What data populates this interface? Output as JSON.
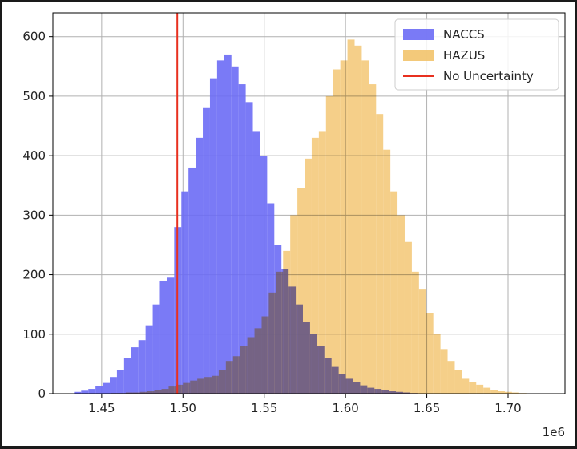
{
  "chart_data": {
    "type": "histogram",
    "title": "",
    "xlabel": "",
    "ylabel": "",
    "x_scale_label": "1e6",
    "xlim": [
      1.42,
      1.735
    ],
    "ylim": [
      0,
      640
    ],
    "xticks": [
      1.45,
      1.5,
      1.55,
      1.6,
      1.65,
      1.7
    ],
    "xtick_labels": [
      "1.45",
      "1.50",
      "1.55",
      "1.60",
      "1.65",
      "1.70"
    ],
    "yticks": [
      0,
      100,
      200,
      300,
      400,
      500,
      600
    ],
    "ytick_labels": [
      "0",
      "100",
      "200",
      "300",
      "400",
      "500",
      "600"
    ],
    "grid": true,
    "legend_position": "top-right",
    "vline": {
      "name": "No Uncertainty",
      "x": 1.4965,
      "color": "#e8301f"
    },
    "series": [
      {
        "name": "NACCS",
        "color": "#6b6bf5",
        "bin_edges": [
          1.433,
          1.4374,
          1.4418,
          1.4462,
          1.4506,
          1.455,
          1.4594,
          1.4638,
          1.4682,
          1.4726,
          1.477,
          1.4814,
          1.4858,
          1.4902,
          1.4946,
          1.499,
          1.5034,
          1.5078,
          1.5122,
          1.5166,
          1.521,
          1.5254,
          1.5298,
          1.5342,
          1.5386,
          1.543,
          1.5474,
          1.5518,
          1.5562,
          1.5606,
          1.565,
          1.5694,
          1.5738,
          1.5782,
          1.5826,
          1.587,
          1.5914,
          1.5958,
          1.6002,
          1.6046,
          1.609,
          1.6134,
          1.6178,
          1.6222,
          1.6266,
          1.631,
          1.6354,
          1.6398,
          1.6442
        ],
        "counts": [
          3,
          5,
          8,
          13,
          18,
          28,
          40,
          60,
          78,
          90,
          115,
          150,
          190,
          195,
          280,
          340,
          380,
          430,
          480,
          530,
          560,
          570,
          550,
          520,
          490,
          440,
          400,
          320,
          250,
          210,
          180,
          150,
          120,
          100,
          80,
          60,
          45,
          33,
          25,
          20,
          14,
          10,
          8,
          6,
          4,
          3,
          2,
          1
        ]
      },
      {
        "name": "HAZUS",
        "color": "#f2c36b",
        "bin_edges": [
          1.456,
          1.4604,
          1.4648,
          1.4692,
          1.4736,
          1.478,
          1.4824,
          1.4868,
          1.4912,
          1.4956,
          1.5,
          1.5044,
          1.5088,
          1.5132,
          1.5176,
          1.522,
          1.5264,
          1.5308,
          1.5352,
          1.5396,
          1.544,
          1.5484,
          1.5528,
          1.5572,
          1.5616,
          1.566,
          1.5704,
          1.5748,
          1.5792,
          1.5836,
          1.588,
          1.5924,
          1.5968,
          1.6012,
          1.6056,
          1.61,
          1.6144,
          1.6188,
          1.6232,
          1.6276,
          1.632,
          1.6364,
          1.6408,
          1.6452,
          1.6496,
          1.654,
          1.6584,
          1.6628,
          1.6672,
          1.6716,
          1.676,
          1.6804,
          1.6848,
          1.6892,
          1.6936,
          1.698,
          1.7024,
          1.7068,
          1.7112
        ],
        "counts": [
          1,
          1,
          2,
          2,
          3,
          4,
          6,
          8,
          12,
          15,
          18,
          22,
          25,
          28,
          30,
          40,
          55,
          63,
          80,
          95,
          110,
          130,
          170,
          205,
          240,
          300,
          345,
          395,
          430,
          440,
          500,
          545,
          560,
          595,
          585,
          560,
          520,
          470,
          410,
          340,
          300,
          255,
          205,
          175,
          135,
          100,
          75,
          55,
          40,
          25,
          20,
          15,
          10,
          6,
          4,
          3,
          2,
          1
        ]
      }
    ]
  }
}
